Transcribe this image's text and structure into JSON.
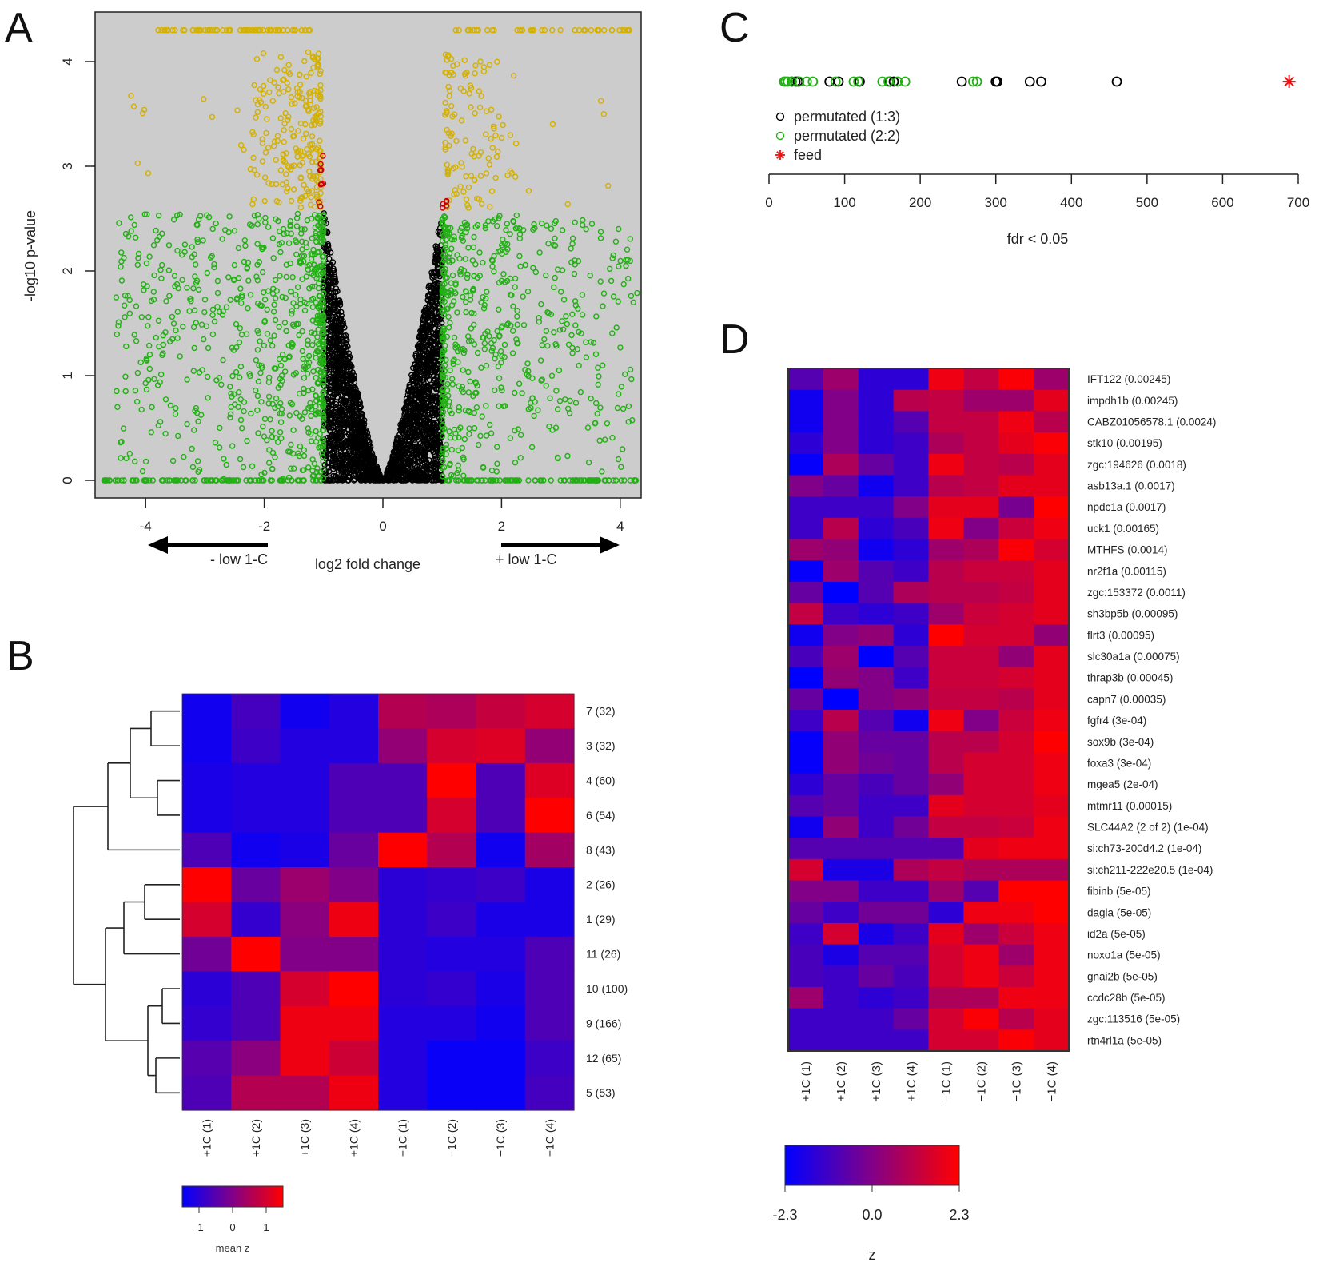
{
  "panels": {
    "a": "A",
    "b": "B",
    "c": "C",
    "d": "D"
  },
  "chart_data": [
    {
      "panel": "A",
      "type": "scatter",
      "xlabel": "log2 fold change",
      "ylabel": "-log10 p-value",
      "xticks": [
        "-4",
        "-2",
        "0",
        "2",
        "4"
      ],
      "yticks": [
        "0",
        "1",
        "2",
        "3",
        "4"
      ],
      "xlim": [
        -4.85,
        4.35
      ],
      "ylim": [
        -0.17,
        4.47
      ],
      "annotations": {
        "left_arrow": "- low 1-C",
        "right_arrow": "+ low 1-C"
      },
      "grid": false,
      "background": "#cccccc",
      "colors": {
        "not_significant": "#000000",
        "fold_change_only": "#22b014",
        "significant": "#d4b000",
        "borderline": "#cc0000"
      }
    },
    {
      "panel": "B",
      "type": "heatmap",
      "rows": [
        "7 (32)",
        "3 (32)",
        "4 (60)",
        "6 (54)",
        "8 (43)",
        "2 (26)",
        "1 (29)",
        "11 (26)",
        "10 (100)",
        "9 (166)",
        "12 (65)",
        "5 (53)"
      ],
      "columns": [
        "+1C (1)",
        "+1C (2)",
        "+1C (3)",
        "+1C (4)",
        "−1C (1)",
        "−1C (2)",
        "−1C (3)",
        "−1C (4)"
      ],
      "values": [
        [
          -1.3,
          -0.7,
          -1.3,
          -1.1,
          0.6,
          0.5,
          0.8,
          1.0
        ],
        [
          -1.3,
          -0.8,
          -1.1,
          -1.1,
          0.2,
          1.0,
          1.1,
          0.2
        ],
        [
          -1.2,
          -1.1,
          -1.1,
          -0.6,
          -0.6,
          1.5,
          -0.6,
          1.1
        ],
        [
          -1.2,
          -1.1,
          -1.1,
          -0.6,
          -0.6,
          1.0,
          -0.6,
          1.5
        ],
        [
          -0.6,
          -1.3,
          -1.2,
          -0.3,
          1.5,
          0.6,
          -1.3,
          0.4
        ],
        [
          1.5,
          -0.3,
          0.3,
          0.0,
          -1.0,
          -0.9,
          -0.8,
          -1.2
        ],
        [
          1.0,
          -0.9,
          0.1,
          1.3,
          -1.0,
          -0.8,
          -1.2,
          -1.2
        ],
        [
          -0.2,
          1.5,
          0.0,
          0.0,
          -1.0,
          -1.1,
          -1.1,
          -0.6
        ],
        [
          -1.0,
          -0.6,
          1.0,
          1.5,
          -1.0,
          -0.9,
          -1.2,
          -0.6
        ],
        [
          -0.9,
          -0.6,
          1.3,
          1.3,
          -1.1,
          -1.1,
          -1.3,
          -0.6
        ],
        [
          -0.5,
          0.1,
          1.3,
          0.9,
          -1.1,
          -1.4,
          -1.4,
          -0.8
        ],
        [
          -0.6,
          0.6,
          0.6,
          1.3,
          -1.1,
          -1.4,
          -1.4,
          -0.7
        ]
      ],
      "color_range": [
        -1.5,
        1.5
      ],
      "colorbar_ticks": [
        "-1",
        "0",
        "1"
      ],
      "colorbar_label": "mean z",
      "dendrogram": "rows"
    },
    {
      "panel": "C",
      "type": "scatter",
      "xlabel": "fdr < 0.05",
      "xticks": [
        "0",
        "100",
        "200",
        "300",
        "400",
        "500",
        "600",
        "700"
      ],
      "xlim": [
        0,
        700
      ],
      "series": [
        {
          "name": "permutated (1:3)",
          "color": "#000000",
          "marker": "circle",
          "x": [
            30,
            35,
            38,
            80,
            92,
            120,
            160,
            165,
            255,
            300,
            302,
            345,
            360,
            460
          ]
        },
        {
          "name": "permutated (2:2)",
          "color": "#22b014",
          "marker": "circle",
          "x": [
            20,
            22,
            25,
            30,
            40,
            50,
            58,
            88,
            112,
            118,
            150,
            158,
            170,
            180,
            270,
            275
          ]
        },
        {
          "name": "feed",
          "color": "#ee1111",
          "marker": "asterisk",
          "x": [
            688
          ]
        }
      ],
      "legend": "top-left"
    },
    {
      "panel": "D",
      "type": "heatmap",
      "rows": [
        "IFT122 (0.00245)",
        "impdh1b (0.00245)",
        "CABZ01056578.1 (0.0024)",
        "stk10 (0.00195)",
        "zgc:194626 (0.0018)",
        "asb13a.1 (0.0017)",
        "npdc1a (0.0017)",
        "uck1 (0.00165)",
        "MTHFS (0.0014)",
        "nr2f1a (0.00115)",
        "zgc:153372 (0.0011)",
        "sh3bp5b (0.00095)",
        "flrt3 (0.00095)",
        "slc30a1a (0.00075)",
        "thrap3b (0.00045)",
        "capn7 (0.00035)",
        "fgfr4 (3e-04)",
        "sox9b (3e-04)",
        "foxa3 (3e-04)",
        "mgea5 (2e-04)",
        "mtmr11 (0.00015)",
        "SLC44A2 (2 of 2) (1e-04)",
        "si:ch73-200d4.2 (1e-04)",
        "si:ch211-222e20.5 (1e-04)",
        "fibinb (5e-05)",
        "dagla (5e-05)",
        "id2a (5e-05)",
        "noxo1a (5e-05)",
        "gnai2b (5e-05)",
        "ccdc28b (5e-05)",
        "zgc:113516 (5e-05)",
        "rtn4rl1a (5e-05)"
      ],
      "columns": [
        "+1C (1)",
        "+1C (2)",
        "+1C (3)",
        "+1C (4)",
        "−1C (1)",
        "−1C (2)",
        "−1C (3)",
        "−1C (4)"
      ],
      "values": [
        [
          -0.8,
          0.5,
          -1.5,
          -1.5,
          2.0,
          1.2,
          2.2,
          0.5
        ],
        [
          -2.0,
          0.0,
          -1.5,
          1.0,
          1.2,
          0.5,
          0.5,
          1.8
        ],
        [
          -2.0,
          0.0,
          -1.5,
          -0.8,
          1.2,
          1.2,
          2.0,
          1.0
        ],
        [
          -1.5,
          0.0,
          -1.5,
          -1.2,
          0.8,
          1.2,
          1.8,
          2.2
        ],
        [
          -2.2,
          0.8,
          -0.5,
          -1.2,
          2.0,
          1.2,
          1.0,
          1.8
        ],
        [
          0.0,
          -0.5,
          -2.0,
          -1.2,
          1.0,
          1.2,
          1.8,
          1.8
        ],
        [
          -1.2,
          -1.2,
          -1.2,
          0.0,
          1.8,
          1.8,
          -0.2,
          2.3
        ],
        [
          -1.2,
          1.0,
          -1.5,
          -1.0,
          2.0,
          0.0,
          1.3,
          2.0
        ],
        [
          0.5,
          0.3,
          -2.0,
          -1.5,
          0.5,
          0.8,
          2.2,
          1.5
        ],
        [
          -2.2,
          0.5,
          -0.8,
          -1.2,
          1.0,
          1.3,
          1.3,
          1.8
        ],
        [
          -0.5,
          -2.3,
          -0.8,
          0.8,
          1.0,
          1.0,
          1.2,
          1.8
        ],
        [
          1.2,
          -1.2,
          -1.5,
          -1.2,
          0.5,
          1.3,
          1.5,
          1.8
        ],
        [
          -2.0,
          0.0,
          0.3,
          -1.5,
          2.3,
          1.5,
          1.5,
          0.3
        ],
        [
          -1.0,
          0.5,
          -2.3,
          -0.8,
          1.3,
          1.3,
          0.3,
          1.8
        ],
        [
          -2.3,
          0.3,
          0.0,
          -1.2,
          1.3,
          1.3,
          1.5,
          1.8
        ],
        [
          -0.5,
          -2.3,
          0.0,
          0.3,
          1.2,
          1.2,
          1.0,
          1.8
        ],
        [
          -1.2,
          1.0,
          -0.8,
          -2.0,
          2.0,
          0.0,
          1.3,
          2.0
        ],
        [
          -2.2,
          0.3,
          -0.5,
          -0.5,
          1.0,
          1.0,
          1.5,
          2.3
        ],
        [
          -2.2,
          0.3,
          -0.3,
          -0.5,
          1.0,
          1.5,
          1.5,
          2.0
        ],
        [
          -1.5,
          -0.5,
          -1.0,
          -0.5,
          0.3,
          1.5,
          1.5,
          2.0
        ],
        [
          -0.8,
          -0.5,
          -1.2,
          -1.2,
          1.8,
          1.5,
          1.5,
          1.8
        ],
        [
          -2.0,
          0.3,
          -1.2,
          -0.3,
          1.2,
          1.2,
          1.3,
          2.0
        ],
        [
          -0.8,
          -0.8,
          -0.8,
          -0.8,
          -0.8,
          1.8,
          2.0,
          2.0
        ],
        [
          1.5,
          -1.8,
          -1.8,
          0.8,
          1.2,
          0.8,
          0.8,
          0.8
        ],
        [
          0.0,
          0.0,
          -1.2,
          -1.2,
          0.5,
          -0.8,
          2.3,
          2.3
        ],
        [
          -0.5,
          -1.2,
          -0.3,
          -0.3,
          -1.5,
          2.0,
          2.0,
          2.3
        ],
        [
          -1.2,
          1.5,
          -1.8,
          -1.2,
          1.8,
          0.5,
          1.3,
          2.0
        ],
        [
          -1.0,
          -1.8,
          -0.8,
          -0.8,
          1.5,
          2.0,
          0.5,
          2.0
        ],
        [
          -1.0,
          -1.2,
          -0.5,
          -1.0,
          1.5,
          2.0,
          1.3,
          2.0
        ],
        [
          0.5,
          -1.2,
          -1.5,
          -1.2,
          0.8,
          0.8,
          2.0,
          2.0
        ],
        [
          -1.2,
          -1.2,
          -1.2,
          -0.5,
          1.5,
          2.2,
          1.0,
          1.8
        ],
        [
          -1.2,
          -1.2,
          -1.2,
          -1.2,
          1.5,
          1.5,
          2.2,
          1.8
        ]
      ],
      "color_range": [
        -2.3,
        2.3
      ],
      "colorbar_ticks": [
        "-2.3",
        "0.0",
        "2.3"
      ],
      "colorbar_label": "z"
    }
  ]
}
